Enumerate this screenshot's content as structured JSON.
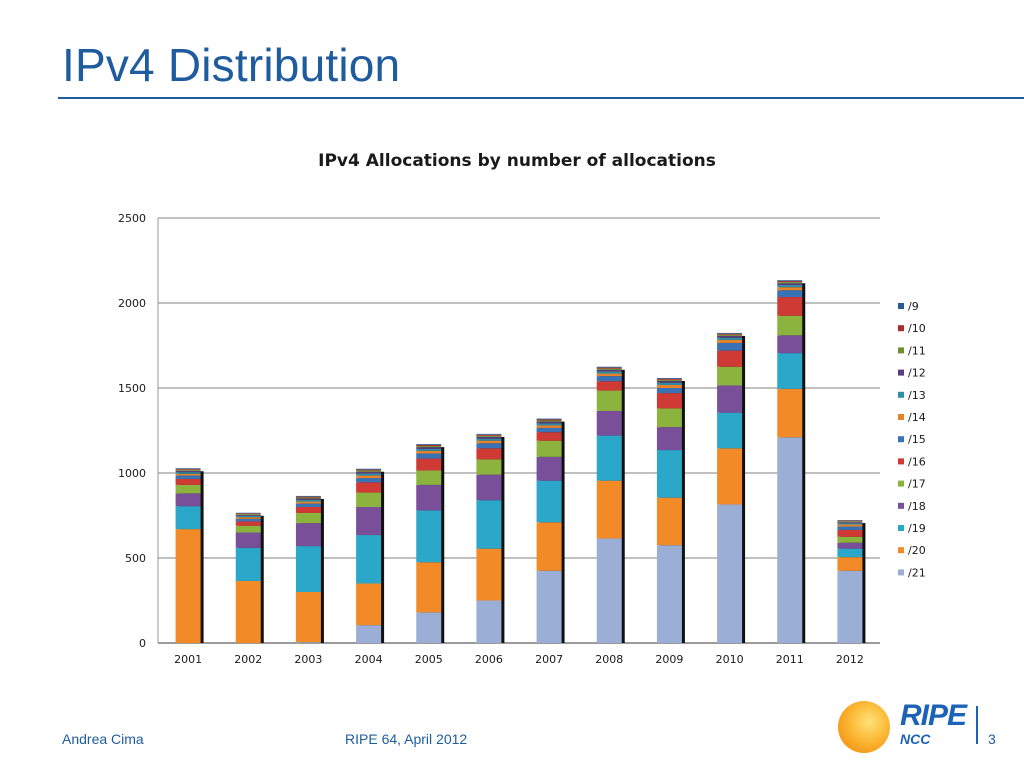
{
  "slide": {
    "title": "IPv4 Distribution"
  },
  "footer": {
    "author": "Andrea Cima",
    "event": "RIPE 64, April 2012",
    "page_number": "3",
    "logo_word": "RIPE",
    "logo_sub": "NCC"
  },
  "chart_data": {
    "type": "bar",
    "stacked": true,
    "title": "IPv4 Allocations by number of allocations",
    "xlabel": "",
    "ylabel": "",
    "ylim": [
      0,
      2500
    ],
    "yticks": [
      0,
      500,
      1000,
      1500,
      2000,
      2500
    ],
    "grid": true,
    "legend_position": "right",
    "categories": [
      "2001",
      "2002",
      "2003",
      "2004",
      "2005",
      "2006",
      "2007",
      "2008",
      "2009",
      "2010",
      "2011",
      "2012"
    ],
    "series": [
      {
        "name": "/21",
        "color": "#9aaed6",
        "values": [
          0,
          0,
          5,
          105,
          180,
          250,
          425,
          615,
          575,
          815,
          1210,
          425
        ]
      },
      {
        "name": "/20",
        "color": "#f28a27",
        "values": [
          670,
          365,
          295,
          245,
          295,
          305,
          285,
          340,
          280,
          330,
          285,
          80
        ]
      },
      {
        "name": "/19",
        "color": "#2aa7c9",
        "values": [
          135,
          195,
          270,
          285,
          305,
          285,
          245,
          265,
          280,
          210,
          210,
          50
        ]
      },
      {
        "name": "/18",
        "color": "#7a4f9a",
        "values": [
          75,
          90,
          135,
          165,
          150,
          150,
          140,
          145,
          135,
          160,
          105,
          35
        ]
      },
      {
        "name": "/17",
        "color": "#8db33f",
        "values": [
          50,
          40,
          60,
          85,
          85,
          90,
          95,
          120,
          110,
          110,
          115,
          35
        ]
      },
      {
        "name": "/16",
        "color": "#cf3a35",
        "values": [
          35,
          25,
          35,
          60,
          70,
          65,
          50,
          55,
          90,
          95,
          110,
          40
        ]
      },
      {
        "name": "/15",
        "color": "#3a73b5",
        "values": [
          20,
          15,
          20,
          25,
          30,
          30,
          25,
          30,
          30,
          45,
          40,
          20
        ]
      },
      {
        "name": "/14",
        "color": "#e5822a",
        "values": [
          10,
          10,
          12,
          15,
          15,
          15,
          15,
          15,
          18,
          18,
          18,
          12
        ]
      },
      {
        "name": "/13",
        "color": "#2f8fa8",
        "values": [
          10,
          8,
          10,
          12,
          12,
          12,
          12,
          12,
          13,
          13,
          13,
          8
        ]
      },
      {
        "name": "/12",
        "color": "#5a3d7a",
        "values": [
          8,
          6,
          8,
          10,
          10,
          10,
          10,
          10,
          10,
          10,
          10,
          6
        ]
      },
      {
        "name": "/11",
        "color": "#6f8f32",
        "values": [
          6,
          5,
          6,
          7,
          7,
          7,
          7,
          7,
          7,
          7,
          7,
          5
        ]
      },
      {
        "name": "/10",
        "color": "#a62f2b",
        "values": [
          5,
          4,
          5,
          6,
          6,
          6,
          6,
          6,
          6,
          6,
          6,
          4
        ]
      },
      {
        "name": "/9",
        "color": "#2b5c8f",
        "values": [
          4,
          3,
          4,
          5,
          5,
          5,
          5,
          5,
          5,
          5,
          5,
          3
        ]
      }
    ]
  }
}
